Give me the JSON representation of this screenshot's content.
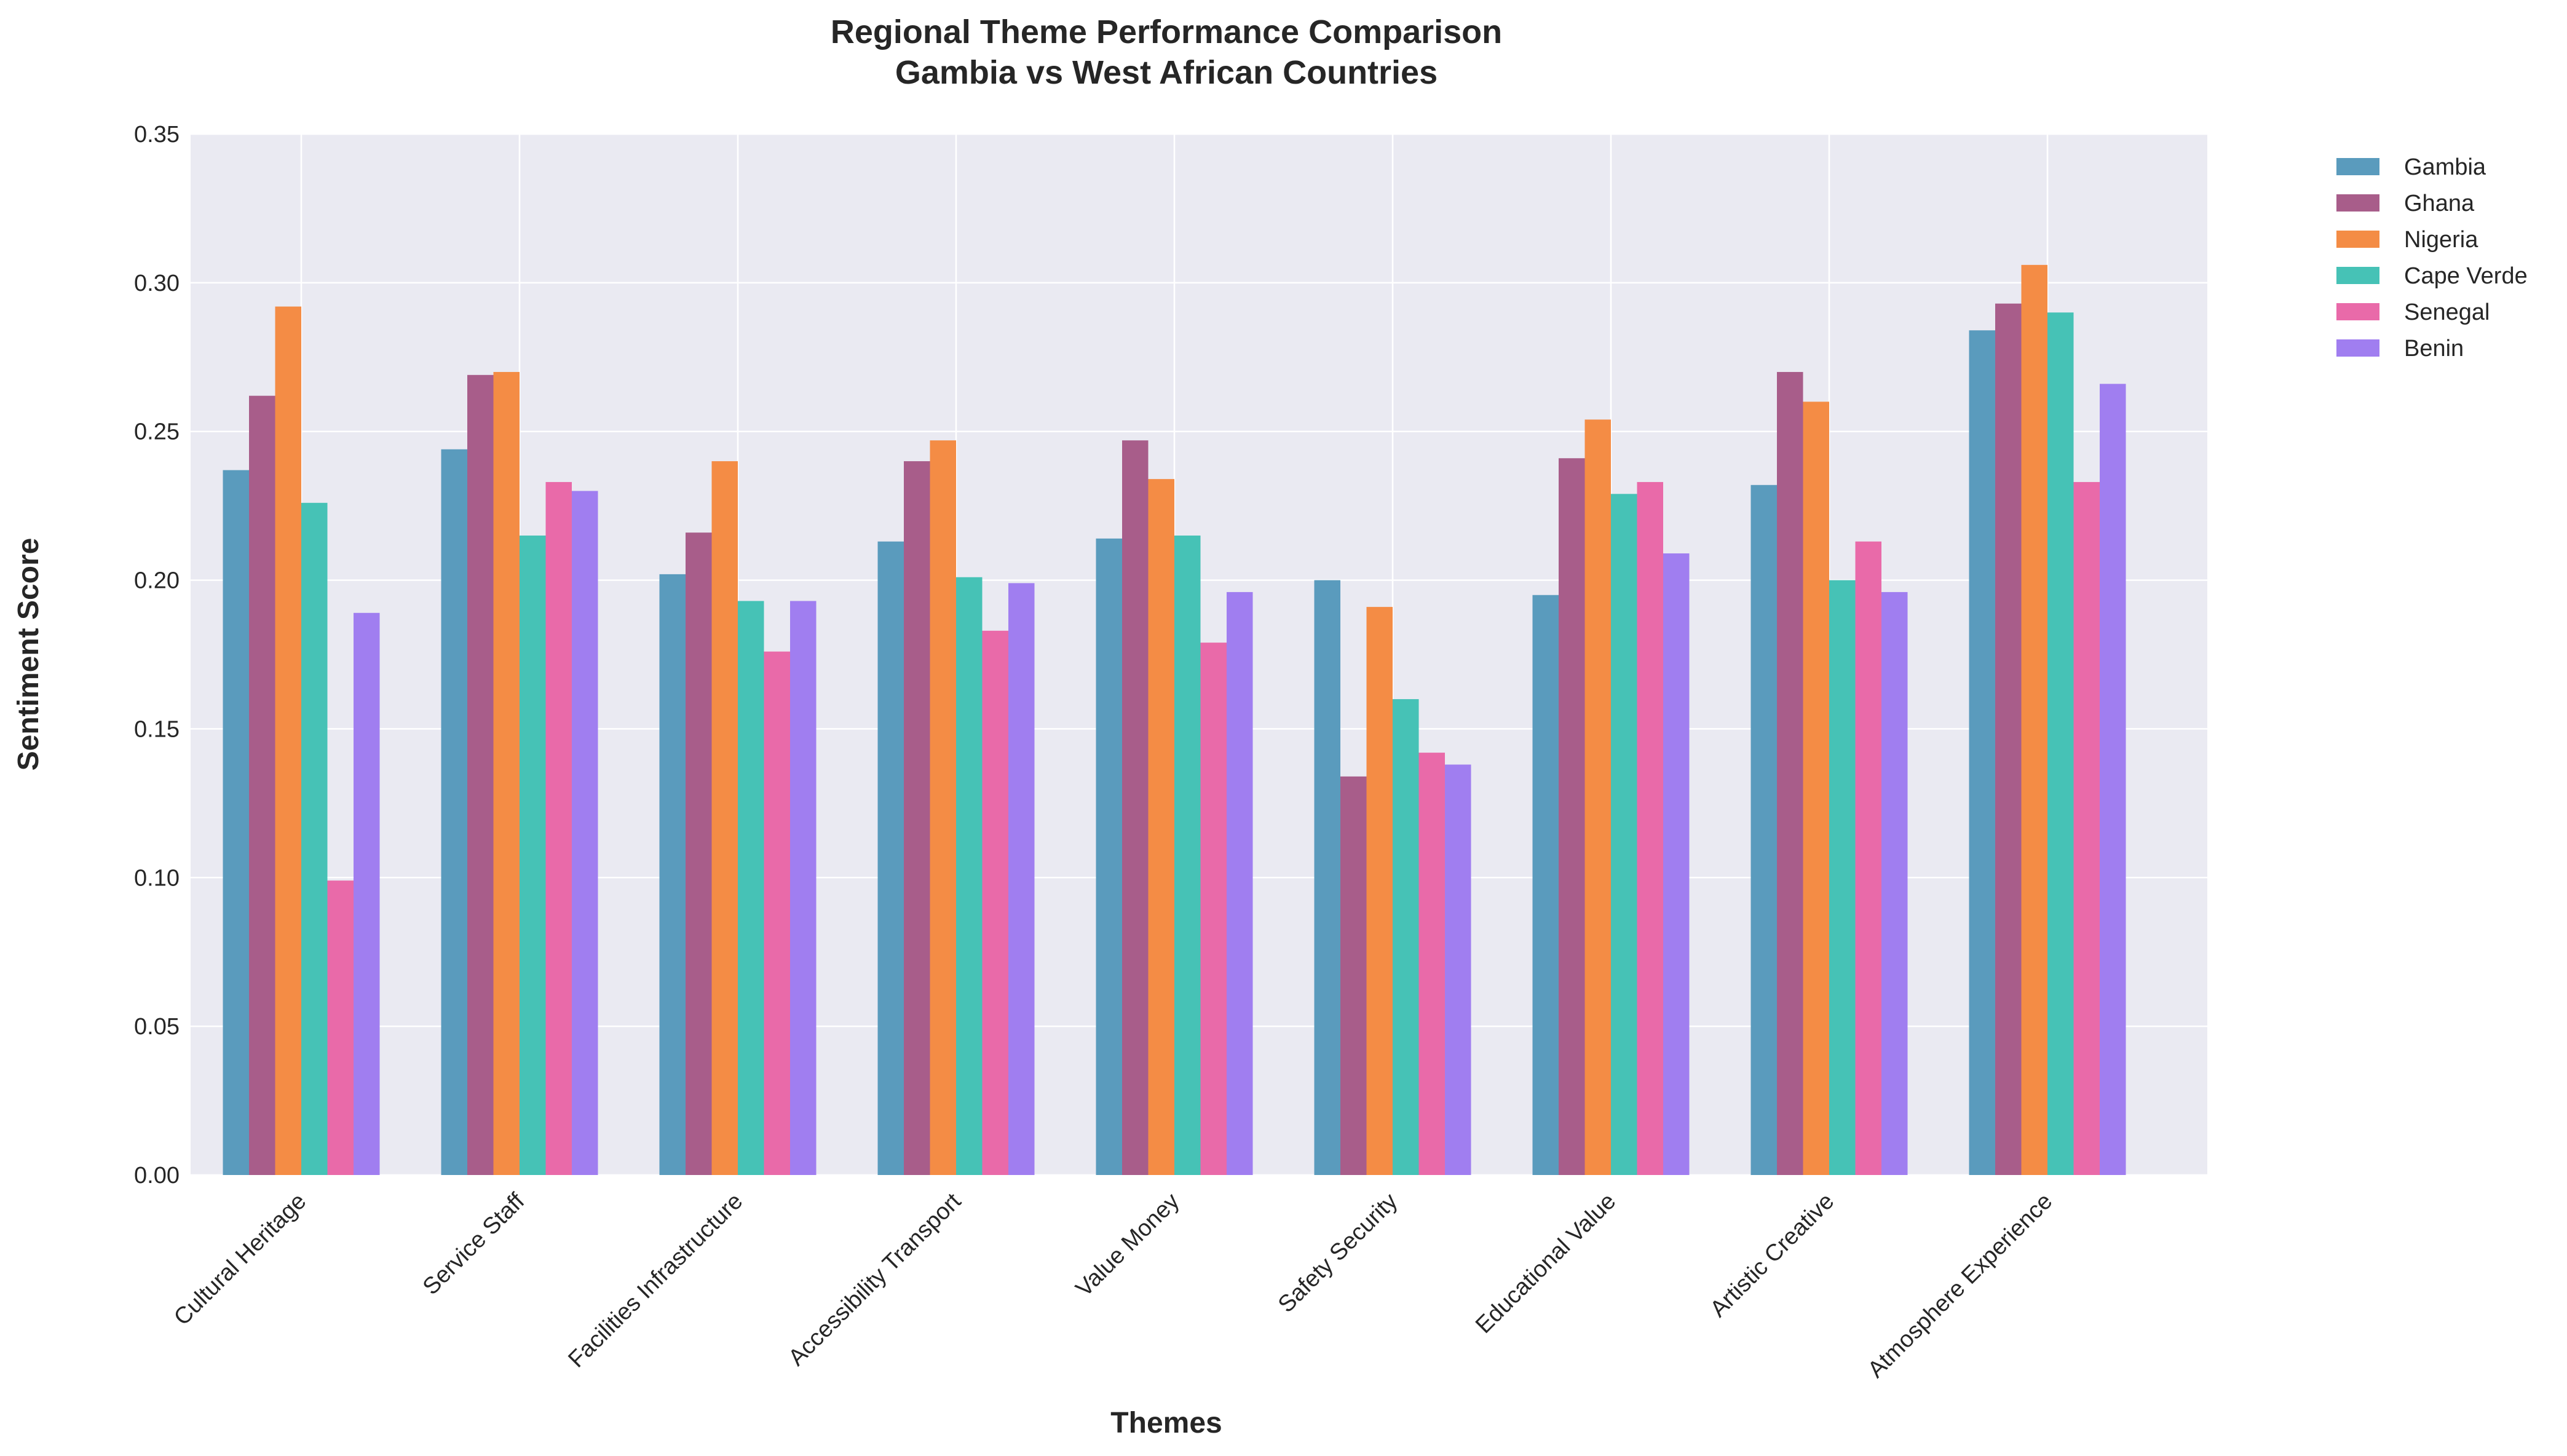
{
  "chart_data": {
    "type": "bar",
    "title": "Regional Theme Performance Comparison",
    "subtitle": "Gambia vs West African Countries",
    "xlabel": "Themes",
    "ylabel": "Sentiment Score",
    "ylim": [
      0,
      0.35
    ],
    "yticks": [
      "0.00",
      "0.05",
      "0.10",
      "0.15",
      "0.20",
      "0.25",
      "0.30",
      "0.35"
    ],
    "grid": true,
    "legend_position": "top-right, outside plot",
    "categories": [
      "Cultural Heritage",
      "Service Staff",
      "Facilities Infrastructure",
      "Accessibility Transport",
      "Value Money",
      "Safety Security",
      "Educational Value",
      "Artistic Creative",
      "Atmosphere Experience"
    ],
    "series": [
      {
        "name": "Gambia",
        "color": "#5a9bbd",
        "values": [
          0.237,
          0.244,
          0.202,
          0.213,
          0.214,
          0.2,
          0.195,
          0.232,
          0.284
        ]
      },
      {
        "name": "Ghana",
        "color": "#a85d8a",
        "values": [
          0.262,
          0.269,
          0.216,
          0.24,
          0.247,
          0.134,
          0.241,
          0.27,
          0.293
        ]
      },
      {
        "name": "Nigeria",
        "color": "#f48c45",
        "values": [
          0.292,
          0.27,
          0.24,
          0.247,
          0.234,
          0.191,
          0.254,
          0.26,
          0.306
        ]
      },
      {
        "name": "Cape Verde",
        "color": "#46c2b6",
        "values": [
          0.226,
          0.215,
          0.193,
          0.201,
          0.215,
          0.16,
          0.229,
          0.2,
          0.29
        ]
      },
      {
        "name": "Senegal",
        "color": "#e96aa9",
        "values": [
          0.099,
          0.233,
          0.176,
          0.183,
          0.179,
          0.142,
          0.233,
          0.213,
          0.233
        ]
      },
      {
        "name": "Benin",
        "color": "#a07ef0",
        "values": [
          0.189,
          0.23,
          0.193,
          0.199,
          0.196,
          0.138,
          0.209,
          0.196,
          0.266
        ]
      }
    ]
  }
}
